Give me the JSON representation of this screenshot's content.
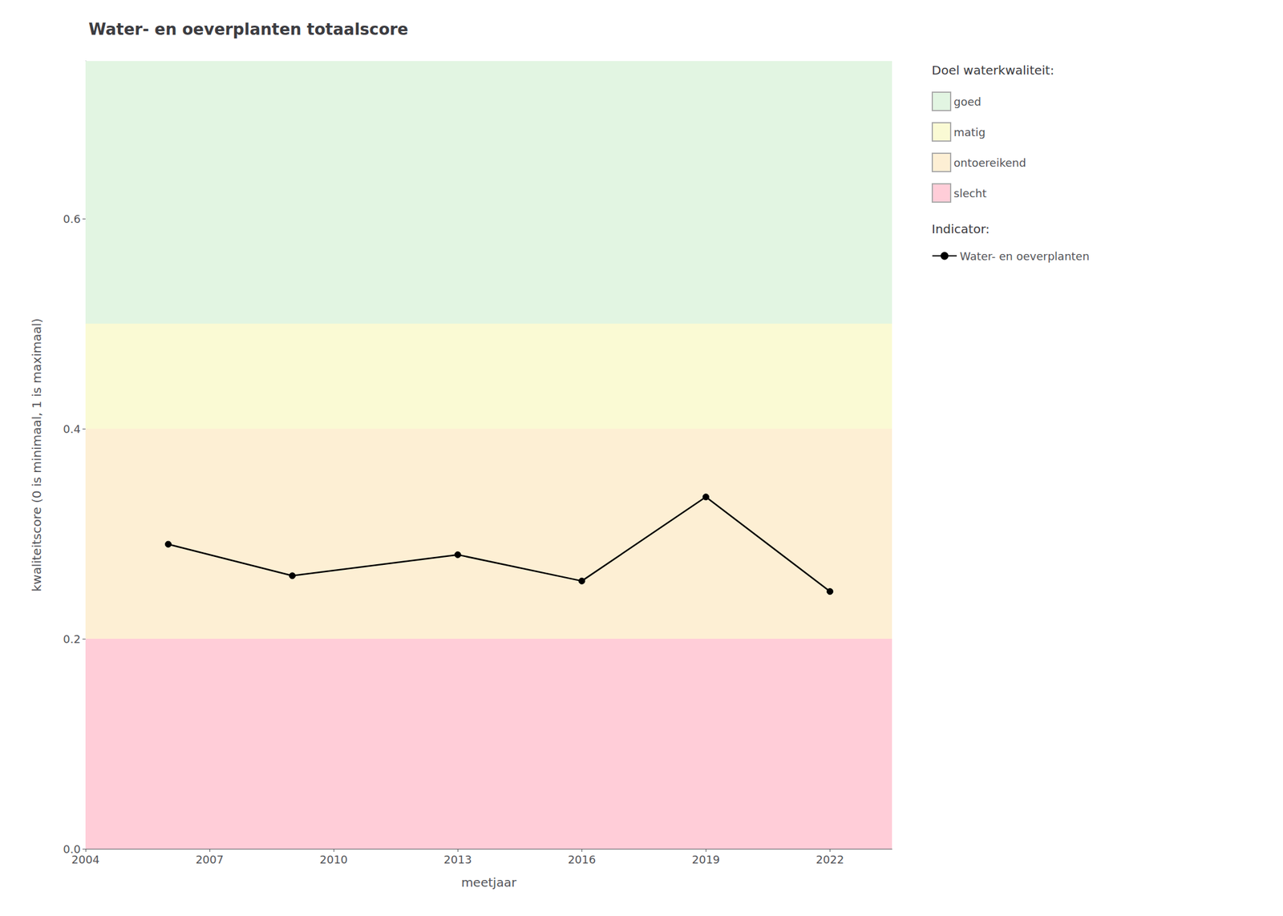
{
  "chart_data": {
    "type": "line",
    "title": "Water- en oeverplanten totaalscore",
    "xlabel": "meetjaar",
    "ylabel": "kwaliteitscore (0 is minimaal, 1 is maximaal)",
    "x": [
      2006,
      2009,
      2013,
      2016,
      2019,
      2022
    ],
    "series": [
      {
        "name": "Water- en oeverplanten",
        "color": "#000000",
        "marker": "o",
        "values": [
          0.29,
          0.26,
          0.28,
          0.255,
          0.335,
          0.245
        ]
      }
    ],
    "xlim": [
      2004,
      2023.5
    ],
    "ylim": [
      0,
      0.75
    ],
    "xticks": [
      2004,
      2007,
      2010,
      2013,
      2016,
      2019,
      2022
    ],
    "yticks": [
      {
        "value": 0,
        "label": "0.0"
      },
      0.2,
      0.4,
      0.6
    ],
    "grid": true,
    "legend": "right",
    "zones_title": "Doel waterkwaliteit:",
    "series_title": "Indicator:",
    "zones": [
      {
        "label": "goed",
        "ymin": 0.5,
        "ymax": 0.75,
        "color": "#E2F5E2"
      },
      {
        "label": "matig",
        "ymin": 0.4,
        "ymax": 0.5,
        "color": "#FAFAD4"
      },
      {
        "label": "ontoereikend",
        "ymin": 0.2,
        "ymax": 0.4,
        "color": "#FDEFD4"
      },
      {
        "label": "slecht",
        "ymin": 0.0,
        "ymax": 0.2,
        "color": "#FFCDD8"
      }
    ]
  }
}
